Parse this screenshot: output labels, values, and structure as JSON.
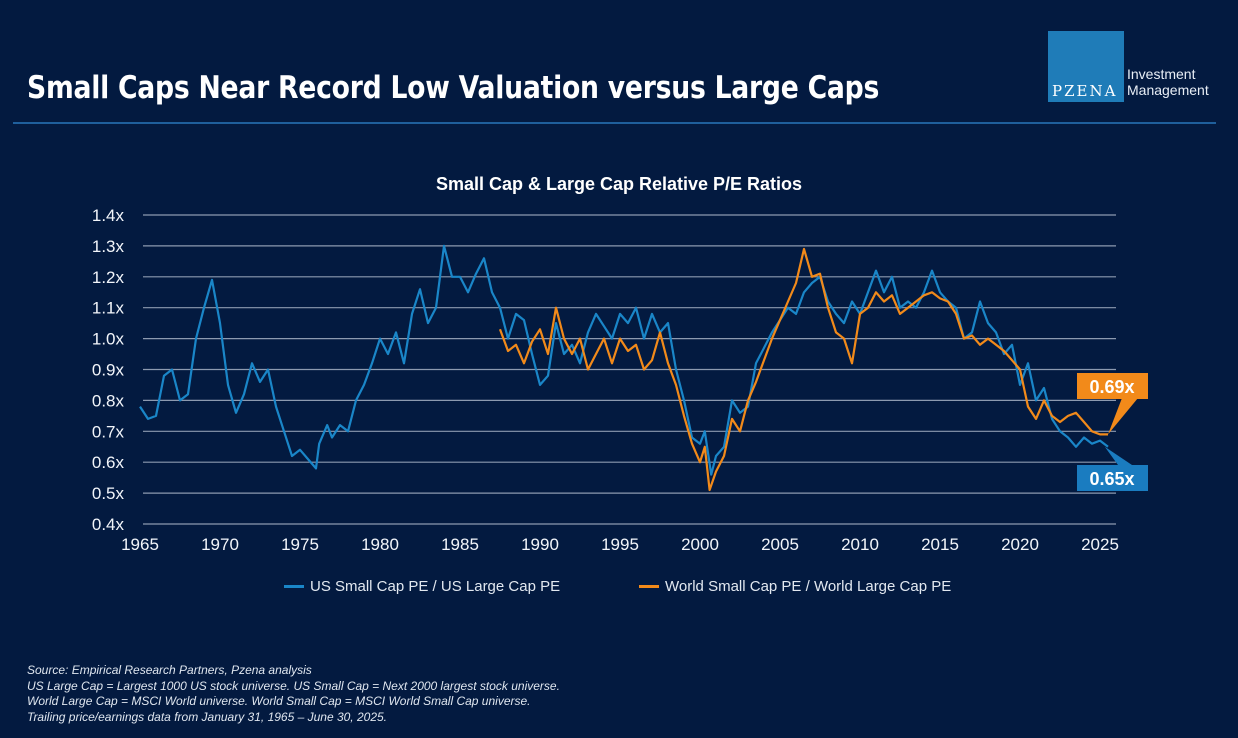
{
  "slide": {
    "title": "Small Caps Near Record Low Valuation versus Large Caps",
    "logo": {
      "mark": "PZENA",
      "line1": "Investment",
      "line2": "Management",
      "color": "#1f7cb8"
    },
    "footnotes": [
      "Source: Empirical Research Partners, Pzena analysis",
      "US Large Cap = Largest 1000 US stock universe. US Small Cap = Next 2000 largest stock universe.",
      "World Large Cap = MSCI World universe. World Small Cap = MSCI World Small Cap universe.",
      "Trailing price/earnings data from January 31, 1965 – June 30, 2025."
    ]
  },
  "chart_data": {
    "type": "line",
    "title": "Small Cap & Large Cap Relative P/E Ratios",
    "xlabel": "",
    "ylabel": "",
    "xlim": [
      1965,
      2026
    ],
    "ylim": [
      0.4,
      1.4
    ],
    "grid": true,
    "legend_position": "bottom",
    "x_ticks": [
      1965,
      1970,
      1975,
      1980,
      1985,
      1990,
      1995,
      2000,
      2005,
      2010,
      2015,
      2020,
      2025
    ],
    "x_tick_labels": [
      "1965",
      "1970",
      "1975",
      "1980",
      "1985",
      "1990",
      "1995",
      "2000",
      "2005",
      "2010",
      "2015",
      "2020",
      "2025"
    ],
    "y_ticks": [
      1.4,
      1.3,
      1.2,
      1.1,
      1.0,
      0.9,
      0.8,
      0.7,
      0.6,
      0.5,
      0.4
    ],
    "y_tick_labels": [
      "1.4x",
      "1.3x",
      "1.2x",
      "1.1x",
      "1.0x",
      "0.9x",
      "0.8x",
      "0.7x",
      "0.6x",
      "0.5x",
      "0.4x"
    ],
    "series": [
      {
        "name": "US Small Cap PE / US Large Cap PE",
        "color": "#1a86c8",
        "x": [
          1965.0,
          1965.5,
          1966.0,
          1966.5,
          1967.0,
          1967.5,
          1968.0,
          1968.5,
          1969.0,
          1969.5,
          1970.0,
          1970.5,
          1971.0,
          1971.5,
          1972.0,
          1972.5,
          1973.0,
          1973.5,
          1974.0,
          1974.5,
          1975.0,
          1975.5,
          1976.0,
          1976.2,
          1976.7,
          1977.0,
          1977.5,
          1978.0,
          1978.5,
          1979.0,
          1979.5,
          1980.0,
          1980.5,
          1981.0,
          1981.5,
          1982.0,
          1982.5,
          1983.0,
          1983.5,
          1984.0,
          1984.5,
          1985.0,
          1985.5,
          1986.0,
          1986.5,
          1987.0,
          1987.5,
          1988.0,
          1988.5,
          1989.0,
          1989.5,
          1990.0,
          1990.5,
          1991.0,
          1991.5,
          1992.0,
          1992.5,
          1993.0,
          1993.5,
          1994.0,
          1994.5,
          1995.0,
          1995.5,
          1996.0,
          1996.5,
          1997.0,
          1997.5,
          1998.0,
          1998.5,
          1999.0,
          1999.5,
          2000.0,
          2000.3,
          2000.7,
          2001.0,
          2001.5,
          2002.0,
          2002.5,
          2003.0,
          2003.5,
          2004.0,
          2004.5,
          2005.0,
          2005.5,
          2006.0,
          2006.5,
          2007.0,
          2007.5,
          2008.0,
          2008.5,
          2009.0,
          2009.5,
          2010.0,
          2010.5,
          2011.0,
          2011.5,
          2012.0,
          2012.5,
          2013.0,
          2013.5,
          2014.0,
          2014.5,
          2015.0,
          2015.5,
          2016.0,
          2016.5,
          2017.0,
          2017.5,
          2018.0,
          2018.5,
          2019.0,
          2019.5,
          2020.0,
          2020.5,
          2021.0,
          2021.5,
          2022.0,
          2022.5,
          2023.0,
          2023.5,
          2024.0,
          2024.5,
          2025.0,
          2025.5
        ],
        "values": [
          0.78,
          0.74,
          0.75,
          0.88,
          0.9,
          0.8,
          0.82,
          1.0,
          1.1,
          1.19,
          1.05,
          0.85,
          0.76,
          0.82,
          0.92,
          0.86,
          0.9,
          0.78,
          0.7,
          0.62,
          0.64,
          0.61,
          0.58,
          0.66,
          0.72,
          0.68,
          0.72,
          0.7,
          0.8,
          0.85,
          0.92,
          1.0,
          0.95,
          1.02,
          0.92,
          1.08,
          1.16,
          1.05,
          1.1,
          1.3,
          1.2,
          1.2,
          1.15,
          1.21,
          1.26,
          1.15,
          1.1,
          1.0,
          1.08,
          1.06,
          0.95,
          0.85,
          0.88,
          1.05,
          0.95,
          0.98,
          0.92,
          1.02,
          1.08,
          1.04,
          1.0,
          1.08,
          1.05,
          1.1,
          1.0,
          1.08,
          1.02,
          1.05,
          0.9,
          0.8,
          0.68,
          0.66,
          0.7,
          0.56,
          0.62,
          0.65,
          0.8,
          0.76,
          0.78,
          0.92,
          0.97,
          1.02,
          1.06,
          1.1,
          1.08,
          1.15,
          1.18,
          1.2,
          1.12,
          1.08,
          1.05,
          1.12,
          1.08,
          1.15,
          1.22,
          1.15,
          1.2,
          1.1,
          1.12,
          1.1,
          1.15,
          1.22,
          1.15,
          1.12,
          1.1,
          1.0,
          1.02,
          1.12,
          1.05,
          1.02,
          0.95,
          0.98,
          0.85,
          0.92,
          0.8,
          0.84,
          0.74,
          0.7,
          0.68,
          0.65,
          0.68,
          0.66,
          0.67,
          0.65
        ]
      },
      {
        "name": "World Small Cap PE / World Large Cap PE",
        "color": "#f28a1a",
        "x": [
          1987.5,
          1988.0,
          1988.5,
          1989.0,
          1989.5,
          1990.0,
          1990.5,
          1991.0,
          1991.5,
          1992.0,
          1992.5,
          1993.0,
          1993.5,
          1994.0,
          1994.5,
          1995.0,
          1995.5,
          1996.0,
          1996.5,
          1997.0,
          1997.5,
          1998.0,
          1998.5,
          1999.0,
          1999.5,
          2000.0,
          2000.3,
          2000.6,
          2001.0,
          2001.5,
          2002.0,
          2002.5,
          2003.0,
          2003.5,
          2004.0,
          2004.5,
          2005.0,
          2005.5,
          2006.0,
          2006.5,
          2007.0,
          2007.5,
          2008.0,
          2008.5,
          2009.0,
          2009.5,
          2010.0,
          2010.5,
          2011.0,
          2011.5,
          2012.0,
          2012.5,
          2013.0,
          2013.5,
          2014.0,
          2014.5,
          2015.0,
          2015.5,
          2016.0,
          2016.5,
          2017.0,
          2017.5,
          2018.0,
          2018.5,
          2019.0,
          2019.5,
          2020.0,
          2020.5,
          2021.0,
          2021.5,
          2022.0,
          2022.5,
          2023.0,
          2023.5,
          2024.0,
          2024.5,
          2025.0,
          2025.5
        ],
        "values": [
          1.03,
          0.96,
          0.98,
          0.92,
          0.99,
          1.03,
          0.95,
          1.1,
          1.0,
          0.95,
          1.0,
          0.9,
          0.95,
          1.0,
          0.92,
          1.0,
          0.96,
          0.98,
          0.9,
          0.93,
          1.02,
          0.92,
          0.85,
          0.75,
          0.66,
          0.6,
          0.65,
          0.51,
          0.57,
          0.62,
          0.74,
          0.7,
          0.8,
          0.86,
          0.93,
          1.0,
          1.06,
          1.12,
          1.18,
          1.29,
          1.2,
          1.21,
          1.1,
          1.02,
          1.0,
          0.92,
          1.08,
          1.1,
          1.15,
          1.12,
          1.14,
          1.08,
          1.1,
          1.12,
          1.14,
          1.15,
          1.13,
          1.12,
          1.08,
          1.0,
          1.01,
          0.98,
          1.0,
          0.98,
          0.96,
          0.93,
          0.9,
          0.78,
          0.74,
          0.8,
          0.75,
          0.73,
          0.75,
          0.76,
          0.73,
          0.7,
          0.69,
          0.69
        ]
      }
    ],
    "annotations": [
      {
        "text": "0.69x",
        "series": "World Small Cap PE / World Large Cap PE",
        "value": 0.69,
        "color": "#f28a1a"
      },
      {
        "text": "0.65x",
        "series": "US Small Cap PE / US Large Cap PE",
        "value": 0.65,
        "color": "#1a7cc0"
      }
    ]
  }
}
